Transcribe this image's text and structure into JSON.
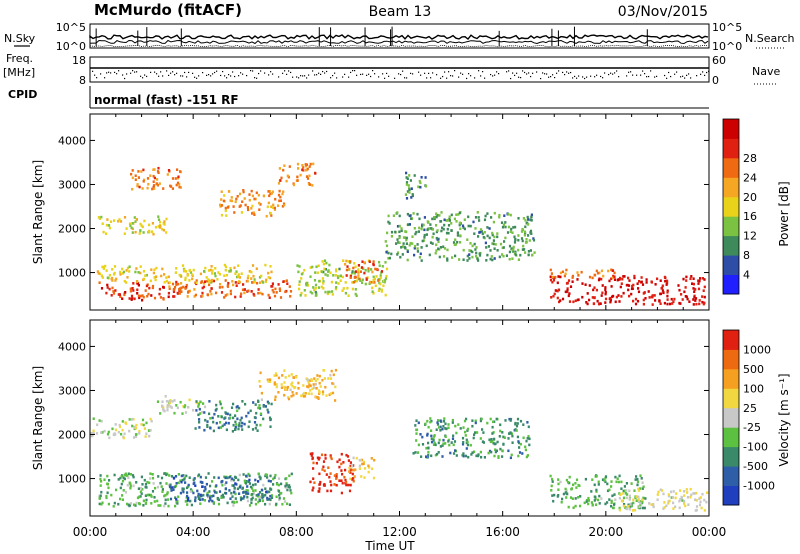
{
  "header": {
    "station": "McMurdo (fitACF)",
    "beam": "Beam 13",
    "date": "03/Nov/2015"
  },
  "top_panel": {
    "nsky_label": "N.Sky",
    "nsearch_label": "N.Search",
    "left_ticks": [
      "10^5",
      "10^0"
    ],
    "right_ticks": [
      "10^5",
      "10^0"
    ]
  },
  "freq_panel": {
    "freq_label": "Freq.",
    "mhz_label": "[MHz]",
    "nave_label": "Nave",
    "left_ticks": [
      "18",
      "8"
    ],
    "right_ticks": [
      "60",
      "0"
    ]
  },
  "cpid": {
    "label": "CPID",
    "value": "normal (fast) -151 RF"
  },
  "x_axis": {
    "label": "Time UT",
    "ticks": [
      "00:00",
      "04:00",
      "08:00",
      "12:00",
      "16:00",
      "20:00",
      "00:00"
    ]
  },
  "power_colorbar": {
    "label": "Power [dB]",
    "ticks": [
      "4",
      "8",
      "12",
      "16",
      "20",
      "24",
      "28"
    ],
    "colors": [
      "#1f1fff",
      "#2d4da6",
      "#3e8a5a",
      "#7bc242",
      "#e8d21a",
      "#f5a623",
      "#ef6a10",
      "#e02010",
      "#cc0000"
    ]
  },
  "velocity_colorbar": {
    "label": "Velocity [m s⁻¹]",
    "ticks": [
      "1000",
      "500",
      "100",
      "25",
      "-25",
      "-100",
      "-500",
      "-1000"
    ],
    "colors": [
      "#1f3fbf",
      "#2e5ea8",
      "#3a8a6a",
      "#5cc040",
      "#c8c8c8",
      "#f2d840",
      "#f5a020",
      "#ee6a10",
      "#e02010"
    ]
  },
  "chart_data": [
    {
      "type": "heatmap",
      "title": "Power",
      "xlabel": "Time UT",
      "ylabel": "Slant Range [km]",
      "xlim": [
        "00:00",
        "24:00"
      ],
      "ylim": [
        150,
        4600
      ],
      "yticks": [
        1000,
        2000,
        3000,
        4000
      ],
      "colorbar": "Power [dB]",
      "clim": [
        0,
        32
      ],
      "blobs": [
        {
          "t0": 0.3,
          "t1": 3.6,
          "r0": 400,
          "r1": 800,
          "value": 26
        },
        {
          "t0": 3.0,
          "t1": 7.8,
          "r0": 450,
          "r1": 850,
          "value": 24
        },
        {
          "t0": 0.2,
          "t1": 7.0,
          "r0": 800,
          "r1": 1200,
          "value": 17
        },
        {
          "t0": 0.3,
          "t1": 3.0,
          "r0": 1900,
          "r1": 2300,
          "value": 16
        },
        {
          "t0": 1.5,
          "t1": 3.5,
          "r0": 2900,
          "r1": 3400,
          "value": 22
        },
        {
          "t0": 5.0,
          "t1": 7.5,
          "r0": 2300,
          "r1": 2900,
          "value": 20
        },
        {
          "t0": 7.2,
          "t1": 8.7,
          "r0": 3000,
          "r1": 3500,
          "value": 22
        },
        {
          "t0": 8.0,
          "t1": 11.5,
          "r0": 500,
          "r1": 1300,
          "value": 14
        },
        {
          "t0": 9.8,
          "t1": 11.3,
          "r0": 800,
          "r1": 1300,
          "value": 24
        },
        {
          "t0": 11.4,
          "t1": 17.2,
          "r0": 1300,
          "r1": 2400,
          "value": 10
        },
        {
          "t0": 12.2,
          "t1": 13.0,
          "r0": 2700,
          "r1": 3300,
          "value": 9
        },
        {
          "t0": 17.8,
          "t1": 23.8,
          "r0": 300,
          "r1": 950,
          "value": 29
        },
        {
          "t0": 17.8,
          "t1": 20.5,
          "r0": 900,
          "r1": 1100,
          "value": 22
        }
      ]
    },
    {
      "type": "heatmap",
      "title": "Velocity",
      "xlabel": "Time UT",
      "ylabel": "Slant Range [km]",
      "xlim": [
        "00:00",
        "24:00"
      ],
      "ylim": [
        150,
        4600
      ],
      "yticks": [
        1000,
        2000,
        3000,
        4000
      ],
      "colorbar": "Velocity [m s⁻¹]",
      "clim": [
        -1000,
        1000
      ],
      "blobs": [
        {
          "t0": 0.3,
          "t1": 7.8,
          "r0": 400,
          "r1": 1150,
          "value": -300
        },
        {
          "t0": 3.0,
          "t1": 7.0,
          "r0": 500,
          "r1": 1100,
          "value": -600
        },
        {
          "t0": 0.0,
          "t1": 2.5,
          "r0": 1950,
          "r1": 2400,
          "value": 0
        },
        {
          "t0": 2.5,
          "t1": 4.5,
          "r0": 2500,
          "r1": 2900,
          "value": 0
        },
        {
          "t0": 4.0,
          "t1": 7.0,
          "r0": 2100,
          "r1": 2800,
          "value": -500
        },
        {
          "t0": 6.5,
          "t1": 9.5,
          "r0": 2800,
          "r1": 3500,
          "value": 300
        },
        {
          "t0": 8.5,
          "t1": 10.2,
          "r0": 700,
          "r1": 1600,
          "value": 900
        },
        {
          "t0": 10.0,
          "t1": 11.0,
          "r0": 1000,
          "r1": 1500,
          "value": 300
        },
        {
          "t0": 12.5,
          "t1": 17.0,
          "r0": 1500,
          "r1": 2400,
          "value": -400
        },
        {
          "t0": 17.8,
          "t1": 21.5,
          "r0": 350,
          "r1": 1100,
          "value": -300
        },
        {
          "t0": 20.5,
          "t1": 23.9,
          "r0": 300,
          "r1": 800,
          "value": 100
        }
      ]
    }
  ]
}
